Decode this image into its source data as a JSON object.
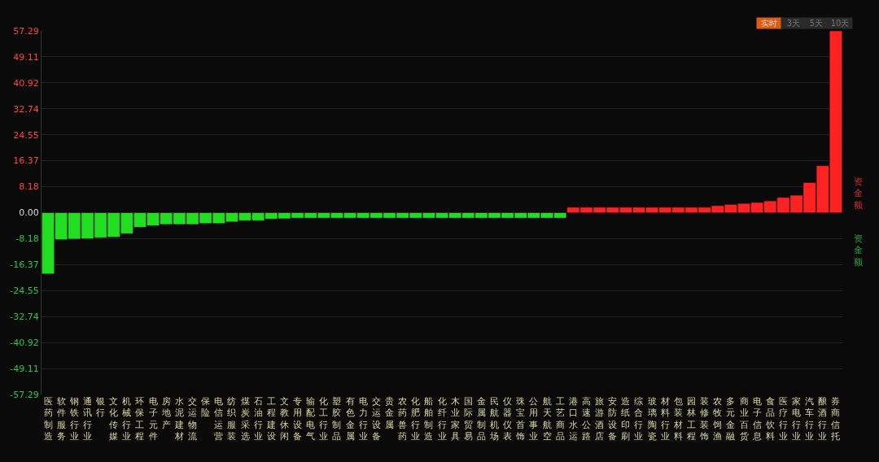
{
  "chart_data": {
    "type": "bar",
    "categories": [
      "医药制造",
      "软件服务",
      "钢铁行业",
      "通讯行业",
      "银行",
      "文化传媒",
      "机械行业",
      "环保工程",
      "电子元件",
      "房地产",
      "水泥建材",
      "交运物流",
      "保险",
      "电信运营",
      "纺织服装",
      "煤炭采选",
      "石油行业",
      "工程建设",
      "文教休闲",
      "专用设备",
      "输配电气",
      "化工行业",
      "塑胶制品",
      "有色金属",
      "电力行业",
      "交运设备",
      "贵金属",
      "农药兽药",
      "化肥行业",
      "船舶制造",
      "化纤行业",
      "木业家具",
      "国际贸易",
      "金属制品",
      "民航机场",
      "仪器仪表",
      "珠宝首饰",
      "公用事业",
      "航天航空",
      "工艺商品",
      "港口水运",
      "高速公路",
      "旅游酒店",
      "安防设备",
      "造纸印刷",
      "综合行业",
      "玻璃陶瓷",
      "材料行业",
      "包装材料",
      "园林工程",
      "装修装饰",
      "农牧饲渔",
      "多元金融",
      "商业百货",
      "电子信息",
      "食品饮料",
      "医疗行业",
      "家电行业",
      "汽车行业",
      "酿酒行业",
      "券商信托"
    ],
    "values": [
      -19.3,
      -8.5,
      -8.3,
      -8.2,
      -7.9,
      -7.7,
      -6.6,
      -4.6,
      -4.1,
      -3.7,
      -3.7,
      -3.7,
      -3.4,
      -3.4,
      -2.9,
      -2.5,
      -2.5,
      -2.0,
      -1.9,
      -1.7,
      -1.7,
      -1.7,
      -1.7,
      -1.7,
      -1.7,
      -1.7,
      -1.7,
      -1.7,
      -1.7,
      -1.7,
      -1.7,
      -1.7,
      -1.7,
      -1.7,
      -1.7,
      -1.7,
      -1.7,
      -1.7,
      -1.7,
      -1.7,
      1.7,
      1.7,
      1.7,
      1.7,
      1.7,
      1.7,
      1.7,
      1.7,
      1.7,
      1.7,
      1.7,
      2.2,
      2.6,
      2.9,
      3.2,
      3.7,
      4.8,
      5.5,
      9.5,
      14.8,
      57.29
    ],
    "colors": [
      "#22dd22",
      "#22dd22",
      "#22dd22",
      "#22dd22",
      "#22dd22",
      "#22dd22",
      "#22dd22",
      "#22dd22",
      "#22dd22",
      "#22dd22",
      "#22dd22",
      "#22dd22",
      "#22dd22",
      "#22dd22",
      "#22dd22",
      "#22dd22",
      "#22dd22",
      "#22dd22",
      "#22dd22",
      "#22dd22",
      "#22dd22",
      "#22dd22",
      "#22dd22",
      "#22dd22",
      "#22dd22",
      "#22dd22",
      "#22dd22",
      "#22dd22",
      "#22dd22",
      "#22dd22",
      "#22dd22",
      "#22dd22",
      "#22dd22",
      "#22dd22",
      "#22dd22",
      "#22dd22",
      "#22dd22",
      "#22dd22",
      "#22dd22",
      "#22dd22",
      "#ff2222",
      "#ff2222",
      "#ff2222",
      "#ff2222",
      "#ff2222",
      "#ff2222",
      "#ff2222",
      "#ff2222",
      "#ff2222",
      "#ff2222",
      "#ff2222",
      "#ff2222",
      "#ff2222",
      "#ff2222",
      "#ff2222",
      "#ff2222",
      "#ff2222",
      "#ff2222",
      "#ff2222",
      "#ff2222",
      "#ff2222"
    ],
    "ylim": [
      -57.29,
      57.29
    ],
    "yticks": [
      {
        "value": 57.29,
        "label": "57.29"
      },
      {
        "value": 49.11,
        "label": "49.11"
      },
      {
        "value": 40.92,
        "label": "40.92"
      },
      {
        "value": 32.74,
        "label": "32.74"
      },
      {
        "value": 24.55,
        "label": "24.55"
      },
      {
        "value": 16.37,
        "label": "16.37"
      },
      {
        "value": 8.18,
        "label": "8.18"
      },
      {
        "value": 0,
        "label": "0.00"
      },
      {
        "value": -8.18,
        "label": "-8.18"
      },
      {
        "value": -16.37,
        "label": "-16.37"
      },
      {
        "value": -24.55,
        "label": "-24.55"
      },
      {
        "value": -32.74,
        "label": "-32.74"
      },
      {
        "value": -40.92,
        "label": "-40.92"
      },
      {
        "value": -49.11,
        "label": "-49.11"
      },
      {
        "value": -57.29,
        "label": "-57.29"
      }
    ],
    "grid": "y",
    "annotations": [
      "实时",
      "3天",
      "5天",
      "10天",
      "资金额",
      "资金额"
    ]
  }
}
